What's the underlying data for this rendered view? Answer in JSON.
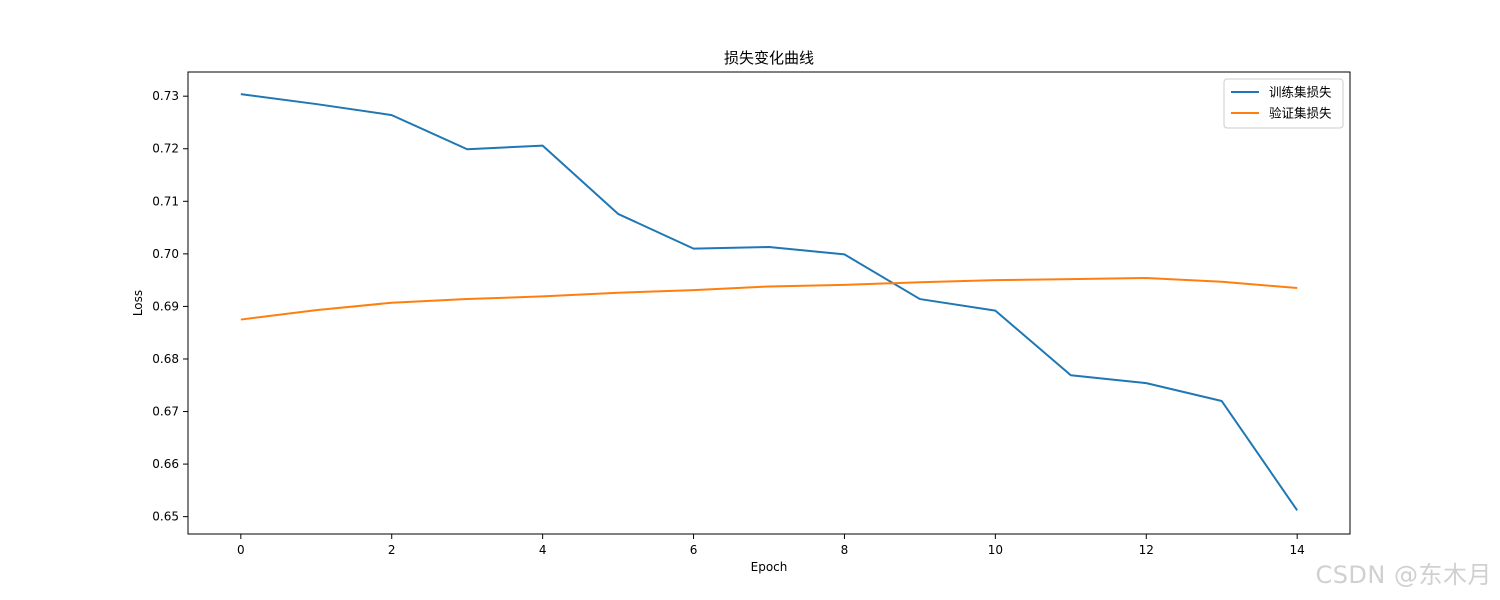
{
  "chart_data": {
    "type": "line",
    "title": "损失变化曲线",
    "xlabel": "Epoch",
    "ylabel": "Loss",
    "x": [
      0,
      1,
      2,
      3,
      4,
      5,
      6,
      7,
      8,
      9,
      10,
      11,
      12,
      13,
      14
    ],
    "xlim": [
      -0.7,
      14.7
    ],
    "ylim": [
      0.6467,
      0.7346
    ],
    "xticks": [
      0,
      2,
      4,
      6,
      8,
      10,
      12,
      14
    ],
    "yticks": [
      0.65,
      0.66,
      0.67,
      0.68,
      0.69,
      0.7,
      0.71,
      0.72,
      0.73
    ],
    "ytick_labels": [
      "0.65",
      "0.66",
      "0.67",
      "0.68",
      "0.69",
      "0.70",
      "0.71",
      "0.72",
      "0.73"
    ],
    "grid": false,
    "legend": "top-right",
    "series": [
      {
        "name": "训练集损失",
        "color": "#1f77b4",
        "values": [
          0.7304,
          0.7285,
          0.7264,
          0.7199,
          0.7206,
          0.7076,
          0.701,
          0.7013,
          0.6999,
          0.6914,
          0.6892,
          0.6769,
          0.6754,
          0.672,
          0.6512
        ]
      },
      {
        "name": "验证集损失",
        "color": "#ff7f0e",
        "values": [
          0.6875,
          0.6893,
          0.6907,
          0.6914,
          0.6919,
          0.6926,
          0.6931,
          0.6938,
          0.6941,
          0.6946,
          0.695,
          0.6952,
          0.6954,
          0.6947,
          0.6935
        ]
      }
    ]
  },
  "watermark": "CSDN @东木月"
}
